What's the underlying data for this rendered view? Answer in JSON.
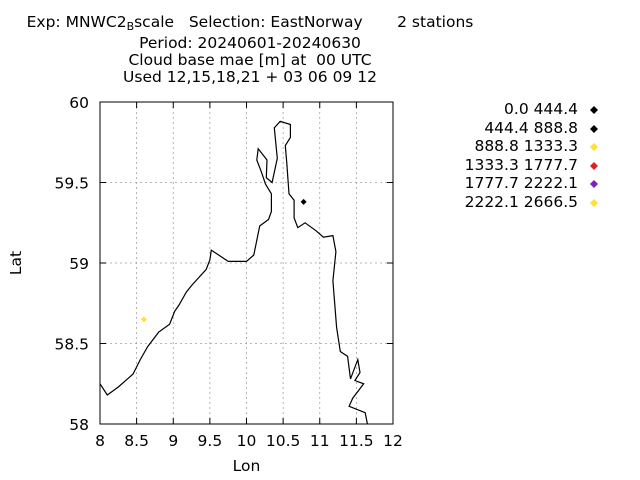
{
  "title": {
    "line1_pre": "Exp: MNWC2",
    "line1_sub": "B",
    "line1_post": "scale   Selection: EastNorway       2 stations",
    "line2": "Period: 20240601-20240630",
    "line3": "Cloud base mae [m] at  00 UTC",
    "line4": "Used 12,15,18,21 + 03 06 09 12"
  },
  "chart_data": {
    "type": "scatter",
    "xlabel": "Lon",
    "ylabel": "Lat",
    "xlim": [
      8,
      12
    ],
    "ylim": [
      58,
      60
    ],
    "xticks": [
      "8",
      "8.5",
      "9",
      "9.5",
      "10",
      "10.5",
      "11",
      "11.5",
      "12"
    ],
    "yticks": [
      "58",
      "58.5",
      "59",
      "59.5",
      "60"
    ],
    "grid": true,
    "legend_position": "right",
    "legend": [
      {
        "label": "0.0 444.4",
        "color": "#000000"
      },
      {
        "label": "444.4 888.8",
        "color": "#000000"
      },
      {
        "label": "888.8 1333.3",
        "color": "#ffe033"
      },
      {
        "label": "1333.3 1777.7",
        "color": "#e02020"
      },
      {
        "label": "1777.7 2222.1",
        "color": "#8020c0"
      },
      {
        "label": "2222.1 2666.5",
        "color": "#ffe033"
      }
    ],
    "points": [
      {
        "lon": 10.78,
        "lat": 59.38,
        "color": "#000000"
      },
      {
        "lon": 8.6,
        "lat": 58.65,
        "color": "#ffe033"
      }
    ],
    "coastline": [
      [
        8.0,
        58.25
      ],
      [
        8.1,
        58.18
      ],
      [
        8.25,
        58.23
      ],
      [
        8.45,
        58.31
      ],
      [
        8.55,
        58.4
      ],
      [
        8.65,
        58.48
      ],
      [
        8.8,
        58.57
      ],
      [
        8.95,
        58.62
      ],
      [
        9.02,
        58.7
      ],
      [
        9.08,
        58.74
      ],
      [
        9.18,
        58.82
      ],
      [
        9.25,
        58.86
      ],
      [
        9.45,
        58.96
      ],
      [
        9.5,
        59.02
      ],
      [
        9.52,
        59.08
      ],
      [
        9.75,
        59.01
      ],
      [
        10.0,
        59.01
      ],
      [
        10.1,
        59.05
      ],
      [
        10.18,
        59.23
      ],
      [
        10.3,
        59.27
      ],
      [
        10.34,
        59.32
      ],
      [
        10.34,
        59.43
      ],
      [
        10.26,
        59.49
      ],
      [
        10.2,
        59.57
      ],
      [
        10.14,
        59.64
      ],
      [
        10.16,
        59.71
      ],
      [
        10.28,
        59.64
      ],
      [
        10.27,
        59.53
      ],
      [
        10.35,
        59.5
      ],
      [
        10.42,
        59.65
      ],
      [
        10.38,
        59.84
      ],
      [
        10.46,
        59.88
      ],
      [
        10.6,
        59.86
      ],
      [
        10.6,
        59.78
      ],
      [
        10.53,
        59.73
      ],
      [
        10.55,
        59.62
      ],
      [
        10.58,
        59.43
      ],
      [
        10.65,
        59.39
      ],
      [
        10.65,
        59.28
      ],
      [
        10.7,
        59.22
      ],
      [
        10.8,
        59.25
      ],
      [
        10.95,
        59.2
      ],
      [
        11.05,
        59.16
      ],
      [
        11.18,
        59.17
      ],
      [
        11.22,
        59.07
      ],
      [
        11.18,
        58.89
      ],
      [
        11.23,
        58.6
      ],
      [
        11.28,
        58.45
      ],
      [
        11.38,
        58.42
      ],
      [
        11.42,
        58.28
      ],
      [
        11.52,
        58.4
      ],
      [
        11.55,
        58.32
      ],
      [
        11.48,
        58.27
      ],
      [
        11.6,
        58.25
      ],
      [
        11.45,
        58.16
      ],
      [
        11.4,
        58.11
      ],
      [
        11.62,
        58.07
      ],
      [
        11.65,
        58.0
      ]
    ]
  }
}
